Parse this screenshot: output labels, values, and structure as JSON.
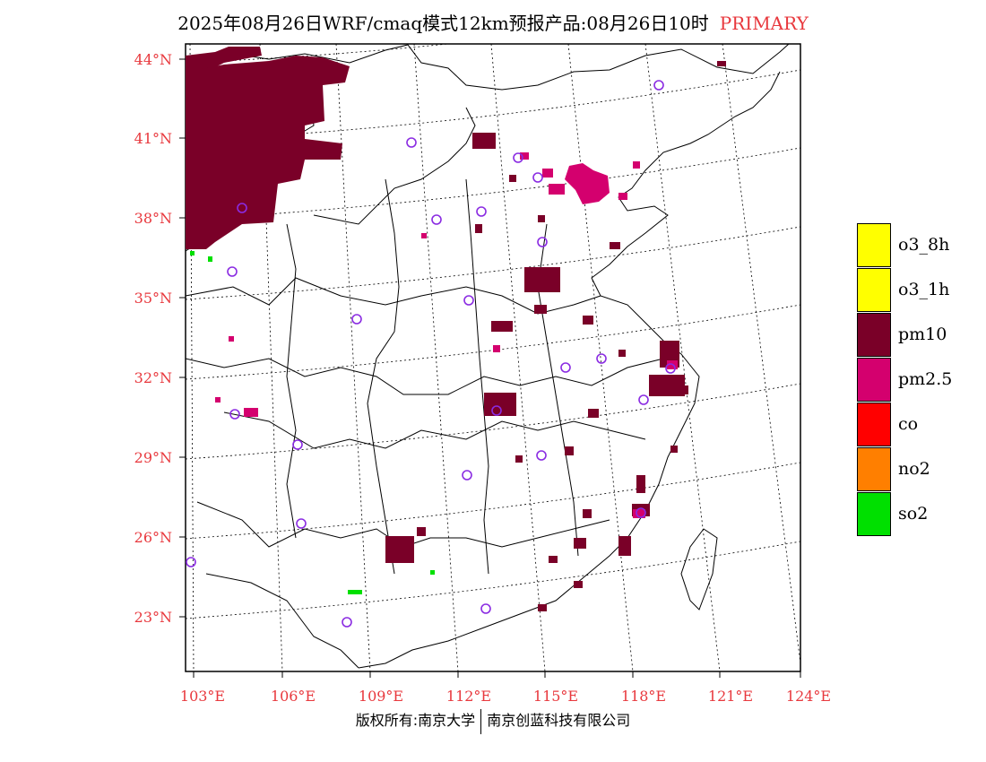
{
  "title": {
    "main": "2025年08月26日WRF/cmaq模式12km预报产品:08月26日10时",
    "tag": "PRIMARY"
  },
  "axes": {
    "lat_labels": [
      "44°N",
      "41°N",
      "38°N",
      "35°N",
      "32°N",
      "29°N",
      "26°N",
      "23°N"
    ],
    "lat_values": [
      44,
      41,
      38,
      35,
      32,
      29,
      26,
      23
    ],
    "lon_labels": [
      "103°E",
      "106°E",
      "109°E",
      "112°E",
      "115°E",
      "118°E",
      "121°E",
      "124°E"
    ],
    "lon_values": [
      103,
      106,
      109,
      112,
      115,
      118,
      121,
      124
    ]
  },
  "legend": [
    {
      "label": "o3_8h",
      "color": "#ffff00"
    },
    {
      "label": "o3_1h",
      "color": "#ffff00"
    },
    {
      "label": "pm10",
      "color": "#7a0028"
    },
    {
      "label": "pm2.5",
      "color": "#d4006e"
    },
    {
      "label": "co",
      "color": "#ff0000"
    },
    {
      "label": "no2",
      "color": "#ff7f00"
    },
    {
      "label": "so2",
      "color": "#00e000"
    }
  ],
  "footer": {
    "left": "版权所有:南京大学",
    "right": "南京创蓝科技有限公司"
  },
  "colors": {
    "label_red": "#e8383d",
    "station_ring": "#8a2be2"
  }
}
